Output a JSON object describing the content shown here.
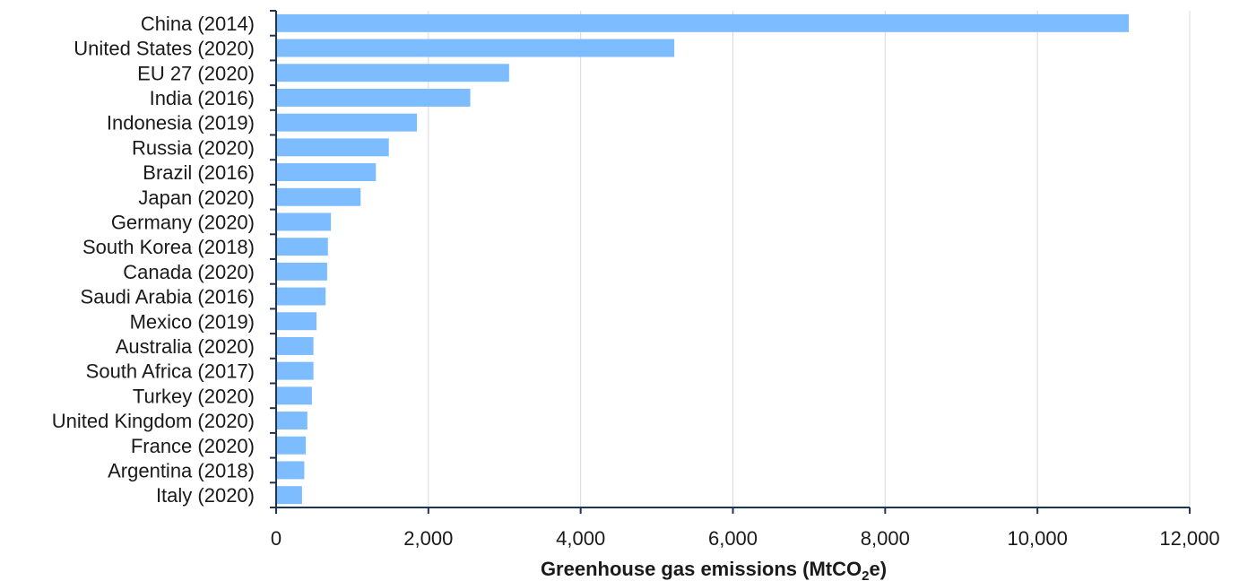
{
  "chart_data": {
    "type": "bar",
    "orientation": "horizontal",
    "categories": [
      "China (2014)",
      "United States (2020)",
      "EU 27 (2020)",
      "India (2016)",
      "Indonesia (2019)",
      "Russia (2020)",
      "Brazil (2016)",
      "Japan (2020)",
      "Germany (2020)",
      "South Korea (2018)",
      "Canada (2020)",
      "Saudi Arabia (2016)",
      "Mexico (2019)",
      "Australia (2020)",
      "South Africa (2017)",
      "Turkey (2020)",
      "United Kingdom (2020)",
      "France (2020)",
      "Argentina (2018)",
      "Italy (2020)"
    ],
    "values": [
      11200,
      5230,
      3060,
      2550,
      1850,
      1480,
      1310,
      1110,
      720,
      680,
      670,
      650,
      530,
      490,
      490,
      470,
      410,
      390,
      370,
      340
    ],
    "xlabel_main": "Greenhouse gas emissions (MtCO",
    "xlabel_sub": "2",
    "xlabel_tail": "e)",
    "xlim": [
      0,
      12000
    ],
    "xticks": [
      0,
      2000,
      4000,
      6000,
      8000,
      10000,
      12000
    ],
    "xtick_labels": [
      "0",
      "2,000",
      "4,000",
      "6,000",
      "8,000",
      "10,000",
      "12,000"
    ],
    "grid": "vertical",
    "colors": {
      "bar": "#7dbcff",
      "grid": "#d9d9d9",
      "axis": "#1f3556"
    }
  }
}
